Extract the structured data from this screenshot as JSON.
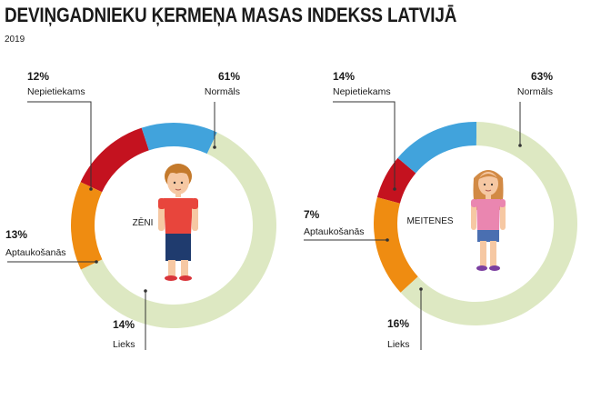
{
  "title": "DEVIŅGADNIEKU ĶERMEŅA MASAS INDEKSS LATVIJĀ",
  "subtitle": "2019",
  "colors": {
    "normals": "#dde8c2",
    "nepietiekams": "#41a3dc",
    "aptaukosanas": "#c4121f",
    "lieks": "#ef8c11"
  },
  "chart_data": [
    {
      "type": "pie",
      "variant": "donut",
      "center_label": "ZĒNI",
      "slices": [
        {
          "label": "Normāls",
          "value": 61,
          "value_label": "61%",
          "color": "#dde8c2"
        },
        {
          "label": "Lieks",
          "value": 14,
          "value_label": "14%",
          "color": "#ef8c11"
        },
        {
          "label": "Aptaukošanās",
          "value": 13,
          "value_label": "13%",
          "color": "#c4121f"
        },
        {
          "label": "Nepietiekams",
          "value": 12,
          "value_label": "12%",
          "color": "#41a3dc"
        }
      ]
    },
    {
      "type": "pie",
      "variant": "donut",
      "center_label": "MEITENES",
      "slices": [
        {
          "label": "Normāls",
          "value": 63,
          "value_label": "63%",
          "color": "#dde8c2"
        },
        {
          "label": "Lieks",
          "value": 16,
          "value_label": "16%",
          "color": "#ef8c11"
        },
        {
          "label": "Aptaukošanās",
          "value": 7,
          "value_label": "7%",
          "color": "#c4121f"
        },
        {
          "label": "Nepietiekams",
          "value": 14,
          "value_label": "14%",
          "color": "#41a3dc"
        }
      ]
    }
  ]
}
